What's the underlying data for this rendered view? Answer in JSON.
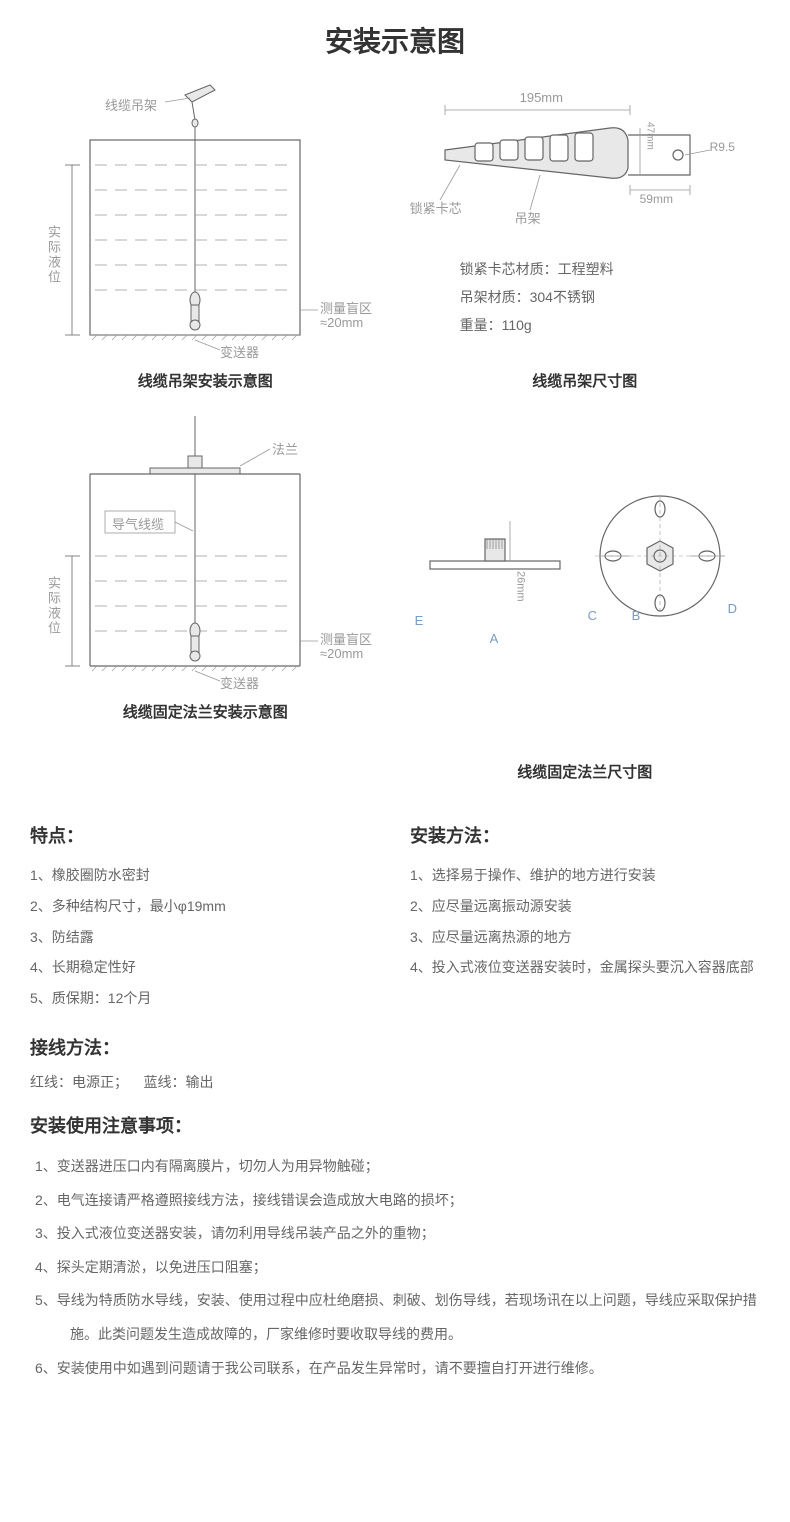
{
  "title": "安装示意图",
  "diagram1": {
    "caption": "线缆吊架安装示意图",
    "hanger_label": "线缆吊架",
    "liquid_label": "实际液位",
    "blind_zone_label": "测量盲区",
    "blind_zone_value": "≈20mm",
    "transmitter_label": "变送器"
  },
  "diagram2": {
    "caption": "线缆吊架尺寸图",
    "width_label": "195mm",
    "radius_label": "R9.5",
    "bracket_label": "59mm",
    "height_label": "47mm",
    "core_label": "锁紧卡芯",
    "hanger_label": "吊架",
    "spec1": "锁紧卡芯材质：工程塑料",
    "spec2": "吊架材质：304不锈钢",
    "spec3": "重量：110g"
  },
  "diagram3": {
    "caption": "线缆固定法兰安装示意图",
    "flange_label": "法兰",
    "cable_label": "导气线缆",
    "liquid_label": "实际液位",
    "blind_zone_label": "测量盲区",
    "blind_zone_value": "≈20mm",
    "transmitter_label": "变送器"
  },
  "diagram4": {
    "caption": "线缆固定法兰尺寸图",
    "height_label": "26mm",
    "label_a": "A",
    "label_b": "B",
    "label_c": "C",
    "label_d": "D",
    "label_e": "E"
  },
  "features": {
    "title": "特点：",
    "items": [
      "橡胶圈防水密封",
      "多种结构尺寸，最小φ19mm",
      "防结露",
      "长期稳定性好",
      "质保期：12个月"
    ]
  },
  "installation": {
    "title": "安装方法：",
    "items": [
      "选择易于操作、维护的地方进行安装",
      "应尽量远离振动源安装",
      "应尽量远离热源的地方",
      "投入式液位变送器安装时，金属探头要沉入容器底部"
    ]
  },
  "wiring": {
    "title": "接线方法：",
    "text": "红线：电源正；    蓝线：输出"
  },
  "precautions": {
    "title": "安装使用注意事项：",
    "items": [
      "变送器进压口内有隔离膜片，切勿人为用异物触碰；",
      "电气连接请严格遵照接线方法，接线错误会造成放大电路的损坏；",
      "投入式液位变送器安装，请勿利用导线吊装产品之外的重物；",
      "探头定期清淤，以免进压口阻塞；",
      "导线为特质防水导线，安装、使用过程中应杜绝磨损、刺破、划伤导线，若现场讯在以上问题，导线应采取保护措施。此类问题发生造成故障的，厂家维修时要收取导线的费用。",
      "安装使用中如遇到问题请于我公司联系，在产品发生异常时，请不要擅自打开进行维修。"
    ]
  },
  "colors": {
    "stroke_dark": "#666666",
    "stroke_light": "#999999",
    "fill_light": "#e8e8e8",
    "text_gray": "#999999"
  }
}
